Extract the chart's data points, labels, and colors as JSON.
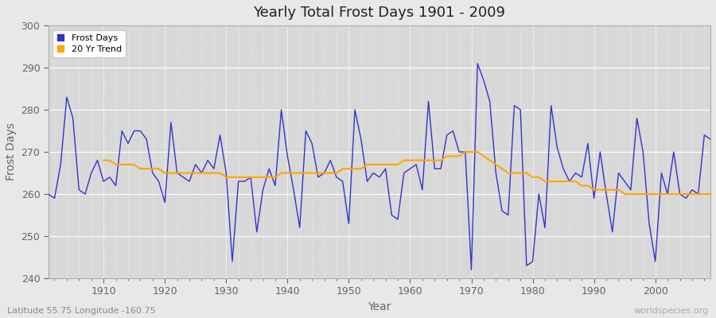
{
  "title": "Yearly Total Frost Days 1901 - 2009",
  "xlabel": "Year",
  "ylabel": "Frost Days",
  "subtitle": "Latitude 55.75 Longitude -160.75",
  "watermark": "worldspecies.org",
  "line_color": "#3333cc",
  "trend_color": "#FFA500",
  "fig_bg_color": "#e8e8e8",
  "plot_bg_color": "#d8d8d8",
  "ylim": [
    240,
    300
  ],
  "xlim": [
    1901,
    2009
  ],
  "yticks": [
    240,
    250,
    260,
    270,
    280,
    290,
    300
  ],
  "xticks": [
    1910,
    1920,
    1930,
    1940,
    1950,
    1960,
    1970,
    1980,
    1990,
    2000
  ],
  "years": [
    1901,
    1902,
    1903,
    1904,
    1905,
    1906,
    1907,
    1908,
    1909,
    1910,
    1911,
    1912,
    1913,
    1914,
    1915,
    1916,
    1917,
    1918,
    1919,
    1920,
    1921,
    1922,
    1923,
    1924,
    1925,
    1926,
    1927,
    1928,
    1929,
    1930,
    1931,
    1932,
    1933,
    1934,
    1935,
    1936,
    1937,
    1938,
    1939,
    1940,
    1941,
    1942,
    1943,
    1944,
    1945,
    1946,
    1947,
    1948,
    1949,
    1950,
    1951,
    1952,
    1953,
    1954,
    1955,
    1956,
    1957,
    1958,
    1959,
    1960,
    1961,
    1962,
    1963,
    1964,
    1965,
    1966,
    1967,
    1968,
    1969,
    1970,
    1971,
    1972,
    1973,
    1974,
    1975,
    1976,
    1977,
    1978,
    1979,
    1980,
    1981,
    1982,
    1983,
    1984,
    1985,
    1986,
    1987,
    1988,
    1989,
    1990,
    1991,
    1992,
    1993,
    1994,
    1995,
    1996,
    1997,
    1998,
    1999,
    2000,
    2001,
    2002,
    2003,
    2004,
    2005,
    2006,
    2007,
    2008,
    2009
  ],
  "frost_days": [
    260,
    259,
    267,
    283,
    278,
    261,
    260,
    265,
    268,
    263,
    264,
    262,
    275,
    272,
    275,
    275,
    273,
    265,
    263,
    258,
    277,
    265,
    264,
    263,
    267,
    265,
    268,
    266,
    274,
    265,
    244,
    263,
    263,
    264,
    251,
    261,
    266,
    262,
    280,
    269,
    261,
    252,
    275,
    272,
    264,
    265,
    268,
    264,
    263,
    253,
    280,
    273,
    263,
    265,
    264,
    266,
    255,
    254,
    265,
    266,
    267,
    261,
    282,
    266,
    266,
    274,
    275,
    270,
    270,
    242,
    291,
    287,
    282,
    265,
    256,
    255,
    281,
    280,
    243,
    244,
    260,
    252,
    281,
    271,
    266,
    263,
    265,
    264,
    272,
    259,
    270,
    260,
    251,
    265,
    263,
    261,
    278,
    270,
    253,
    244,
    265,
    260,
    270,
    260,
    259,
    261,
    260,
    274,
    273
  ],
  "trend_vals": [
    null,
    null,
    null,
    null,
    null,
    null,
    null,
    null,
    null,
    268,
    268,
    267,
    267,
    267,
    267,
    266,
    266,
    266,
    266,
    265,
    265,
    265,
    265,
    265,
    265,
    265,
    265,
    265,
    265,
    264,
    264,
    264,
    264,
    264,
    264,
    264,
    264,
    264,
    265,
    265,
    265,
    265,
    265,
    265,
    265,
    265,
    265,
    265,
    266,
    266,
    266,
    266,
    267,
    267,
    267,
    267,
    267,
    267,
    268,
    268,
    268,
    268,
    268,
    268,
    268,
    269,
    269,
    269,
    270,
    270,
    270,
    269,
    268,
    267,
    266,
    265,
    265,
    265,
    265,
    264,
    264,
    263,
    263,
    263,
    263,
    263,
    263,
    262,
    262,
    261,
    261,
    261,
    261,
    261,
    260,
    260,
    260,
    260,
    260,
    260,
    260,
    260,
    260,
    260,
    260,
    260,
    260,
    260,
    260
  ]
}
